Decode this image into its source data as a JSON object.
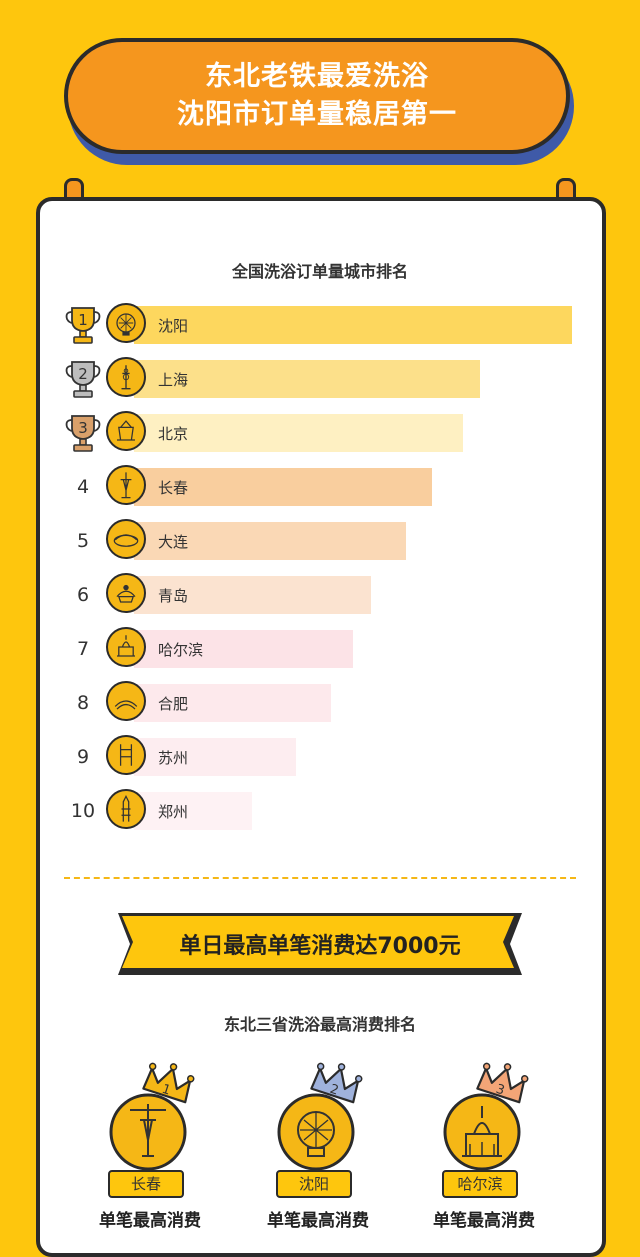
{
  "header": {
    "line1": "东北老铁最爱洗浴",
    "line2": "沈阳市订单量稳居第一"
  },
  "ranking": {
    "title": "全国洗浴订单量城市排名"
  },
  "chart_data": {
    "type": "bar",
    "orientation": "horizontal",
    "title": "全国洗浴订单量城市排名",
    "categories": [
      "沈阳",
      "上海",
      "北京",
      "长春",
      "大连",
      "青岛",
      "哈尔滨",
      "合肥",
      "苏州",
      "郑州"
    ],
    "ranks": [
      "1",
      "2",
      "3",
      "4",
      "5",
      "6",
      "7",
      "8",
      "9",
      "10"
    ],
    "values": [
      100,
      79,
      75,
      68,
      62,
      54,
      50,
      45,
      37,
      27
    ],
    "bar_colors": [
      "#FDD75E",
      "#FCE08A",
      "#FEF0C2",
      "#F9CE9E",
      "#FAD8B5",
      "#FBE3D0",
      "#FCE3E7",
      "#FDE9EC",
      "#FDEDF0",
      "#FEF2F4"
    ]
  },
  "highlight": {
    "tag": "单日最高单笔消费达7000元"
  },
  "northeast": {
    "title": "东北三省洗浴最高消费排名",
    "cities": [
      "长春",
      "沈阳",
      "哈尔滨"
    ],
    "crown_numbers": [
      "1",
      "2",
      "3"
    ],
    "caption": "单笔最高消费"
  },
  "colors": {
    "background": "#FEC60D",
    "banner": "#F5961E",
    "banner_shadow": "#3F5AA8",
    "gold": "#F5B716",
    "silver": "#BDBDBD",
    "bronze": "#D9A06A"
  }
}
